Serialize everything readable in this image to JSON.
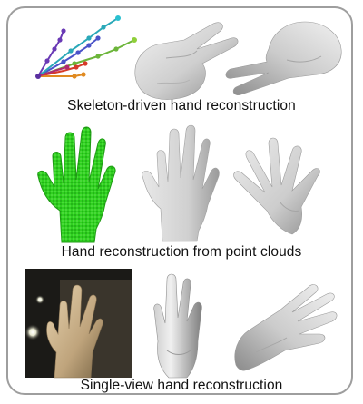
{
  "figure": {
    "panels": [
      {
        "caption": "Skeleton-driven hand reconstruction",
        "images": [
          "skeleton-graph",
          "hand-peace-sign",
          "hand-peace-sign-rotated"
        ]
      },
      {
        "caption": "Hand reconstruction from point clouds",
        "images": [
          "point-cloud-hand",
          "reconstructed-hand-back",
          "reconstructed-hand-palm"
        ]
      },
      {
        "caption": "Single-view hand reconstruction",
        "images": [
          "photo-input",
          "reconstructed-hand-side",
          "reconstructed-hand-top"
        ]
      }
    ]
  },
  "colors": {
    "frame": "#9e9e9e",
    "mesh": "#d6d6d6",
    "mesh_shadow": "#8f8f8f",
    "point_cloud": "#2fd21f",
    "photo_bg": "#1b1a17",
    "skin": "#c9b08a"
  }
}
